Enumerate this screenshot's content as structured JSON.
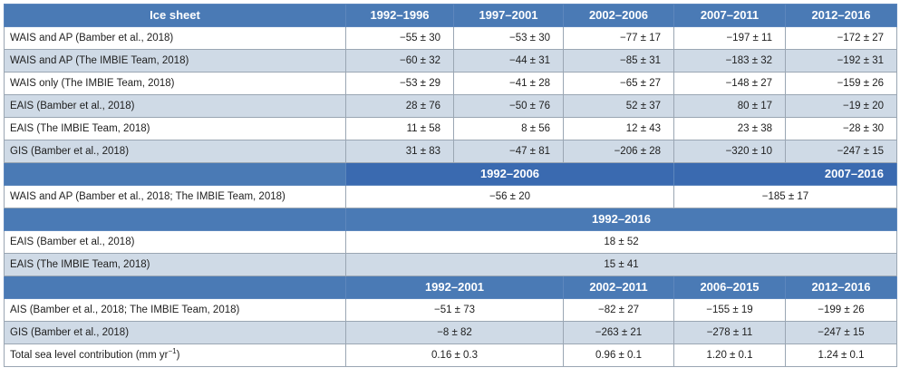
{
  "header": {
    "col0": "Ice sheet",
    "periods": [
      "1992–1996",
      "1997–2001",
      "2002–2006",
      "2007–2011",
      "2012–2016"
    ]
  },
  "section1": [
    {
      "label": "WAIS and AP (Bamber et al., 2018)",
      "values": [
        "−55 ± 30",
        "−53 ± 30",
        "−77 ± 17",
        "−197 ± 11",
        "−172 ± 27"
      ]
    },
    {
      "label": "WAIS and AP (The IMBIE Team, 2018)",
      "values": [
        "−60 ± 32",
        "−44 ± 31",
        "−85 ± 31",
        "−183 ± 32",
        "−192 ± 31"
      ]
    },
    {
      "label": "WAIS only (The IMBIE Team, 2018)",
      "values": [
        "−53 ± 29",
        "−41 ± 28",
        "−65 ± 27",
        "−148 ± 27",
        "−159 ± 26"
      ]
    },
    {
      "label": "EAIS (Bamber et al., 2018)",
      "values": [
        "28 ± 76",
        "−50 ± 76",
        "52 ± 37",
        "80 ± 17",
        "−19 ± 20"
      ]
    },
    {
      "label": "EAIS (The IMBIE Team, 2018)",
      "values": [
        "11 ± 58",
        "8 ± 56",
        "12 ± 43",
        "23 ± 38",
        "−28 ± 30"
      ]
    },
    {
      "label": "GIS (Bamber et al., 2018)",
      "values": [
        "31 ± 83",
        "−47 ± 81",
        "−206 ± 28",
        "−320 ± 10",
        "−247 ± 15"
      ]
    }
  ],
  "section2": {
    "periods": [
      "1992–2006",
      "2007–2016"
    ],
    "row": {
      "label": "WAIS and AP (Bamber et al., 2018; The IMBIE Team, 2018)",
      "values": [
        "−56 ± 20",
        "−185 ± 17"
      ]
    }
  },
  "section3": {
    "period": "1992–2016",
    "rows": [
      {
        "label": "EAIS (Bamber et al., 2018)",
        "value": "18 ± 52"
      },
      {
        "label": "EAIS (The IMBIE Team, 2018)",
        "value": "15 ± 41"
      }
    ]
  },
  "section4": {
    "periods": [
      "1992–2001",
      "2002–2011",
      "2006–2015",
      "2012–2016"
    ],
    "rows": [
      {
        "label": "AIS (Bamber et al., 2018; The IMBIE Team, 2018)",
        "values": [
          "−51 ± 73",
          "−82 ± 27",
          "−155 ± 19",
          "−199 ± 26"
        ]
      },
      {
        "label": "GIS (Bamber et al., 2018)",
        "values": [
          "−8 ± 82",
          "−263 ± 21",
          "−278 ± 11",
          "−247 ± 15"
        ]
      },
      {
        "label_main": "Total sea level contribution (mm yr",
        "label_sup": "−1",
        "label_end": ")",
        "values": [
          "0.16 ± 0.3",
          "0.96 ± 0.1",
          "1.20 ± 0.1",
          "1.24 ± 0.1"
        ]
      }
    ]
  }
}
